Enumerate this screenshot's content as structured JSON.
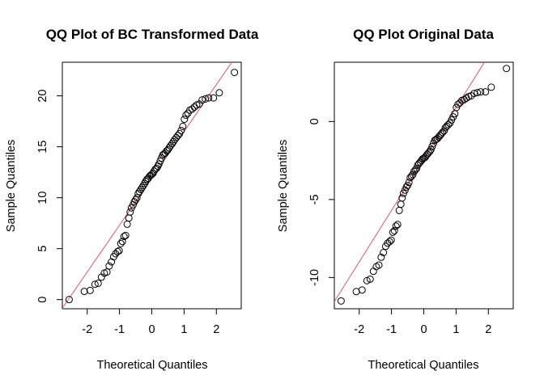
{
  "chart_data": [
    {
      "type": "scatter",
      "title": "QQ Plot of BC Transformed Data",
      "xlabel": "Theoretical Quantiles",
      "ylabel": "Sample Quantiles",
      "xlim": [
        -2.77,
        2.77
      ],
      "ylim": [
        -0.9,
        23.3
      ],
      "xticks": [
        -2,
        -1,
        0,
        1,
        2
      ],
      "yticks": [
        0,
        5,
        10,
        15,
        20
      ],
      "reference_line": {
        "intercept": 11.9,
        "slope": 4.6,
        "color": "#DF536B"
      },
      "point_color": "#000000",
      "points": [
        {
          "x": -2.56,
          "y": 0.0
        },
        {
          "x": -2.09,
          "y": 0.8
        },
        {
          "x": -1.91,
          "y": 0.9
        },
        {
          "x": -1.76,
          "y": 1.5
        },
        {
          "x": -1.66,
          "y": 1.6
        },
        {
          "x": -1.56,
          "y": 2.2
        },
        {
          "x": -1.47,
          "y": 2.6
        },
        {
          "x": -1.39,
          "y": 2.7
        },
        {
          "x": -1.32,
          "y": 3.3
        },
        {
          "x": -1.25,
          "y": 3.7
        },
        {
          "x": -1.18,
          "y": 4.2
        },
        {
          "x": -1.12,
          "y": 4.5
        },
        {
          "x": -1.06,
          "y": 4.7
        },
        {
          "x": -1.01,
          "y": 4.8
        },
        {
          "x": -0.96,
          "y": 5.5
        },
        {
          "x": -0.91,
          "y": 5.7
        },
        {
          "x": -0.86,
          "y": 6.2
        },
        {
          "x": -0.81,
          "y": 6.3
        },
        {
          "x": -0.76,
          "y": 7.4
        },
        {
          "x": -0.71,
          "y": 8.0
        },
        {
          "x": -0.67,
          "y": 8.6
        },
        {
          "x": -0.63,
          "y": 9.0
        },
        {
          "x": -0.58,
          "y": 9.3
        },
        {
          "x": -0.54,
          "y": 9.6
        },
        {
          "x": -0.5,
          "y": 9.8
        },
        {
          "x": -0.46,
          "y": 10.0
        },
        {
          "x": -0.42,
          "y": 10.4
        },
        {
          "x": -0.38,
          "y": 10.6
        },
        {
          "x": -0.34,
          "y": 10.8
        },
        {
          "x": -0.3,
          "y": 11.0
        },
        {
          "x": -0.26,
          "y": 11.2
        },
        {
          "x": -0.22,
          "y": 11.4
        },
        {
          "x": -0.19,
          "y": 11.6
        },
        {
          "x": -0.15,
          "y": 11.8
        },
        {
          "x": -0.11,
          "y": 11.9
        },
        {
          "x": -0.07,
          "y": 12.1
        },
        {
          "x": -0.04,
          "y": 12.2
        },
        {
          "x": 0.0,
          "y": 12.3
        },
        {
          "x": 0.04,
          "y": 12.4
        },
        {
          "x": 0.07,
          "y": 12.6
        },
        {
          "x": 0.11,
          "y": 12.8
        },
        {
          "x": 0.15,
          "y": 12.9
        },
        {
          "x": 0.19,
          "y": 13.1
        },
        {
          "x": 0.22,
          "y": 13.3
        },
        {
          "x": 0.26,
          "y": 13.6
        },
        {
          "x": 0.3,
          "y": 13.9
        },
        {
          "x": 0.34,
          "y": 14.2
        },
        {
          "x": 0.38,
          "y": 14.3
        },
        {
          "x": 0.42,
          "y": 14.4
        },
        {
          "x": 0.46,
          "y": 14.6
        },
        {
          "x": 0.5,
          "y": 14.7
        },
        {
          "x": 0.54,
          "y": 14.9
        },
        {
          "x": 0.58,
          "y": 15.1
        },
        {
          "x": 0.63,
          "y": 15.3
        },
        {
          "x": 0.67,
          "y": 15.5
        },
        {
          "x": 0.71,
          "y": 15.7
        },
        {
          "x": 0.76,
          "y": 15.9
        },
        {
          "x": 0.81,
          "y": 16.1
        },
        {
          "x": 0.86,
          "y": 16.3
        },
        {
          "x": 0.91,
          "y": 16.6
        },
        {
          "x": 0.96,
          "y": 17.0
        },
        {
          "x": 1.01,
          "y": 17.7
        },
        {
          "x": 1.06,
          "y": 18.1
        },
        {
          "x": 1.12,
          "y": 18.3
        },
        {
          "x": 1.18,
          "y": 18.6
        },
        {
          "x": 1.25,
          "y": 18.7
        },
        {
          "x": 1.32,
          "y": 18.9
        },
        {
          "x": 1.39,
          "y": 19.1
        },
        {
          "x": 1.47,
          "y": 19.2
        },
        {
          "x": 1.56,
          "y": 19.6
        },
        {
          "x": 1.66,
          "y": 19.7
        },
        {
          "x": 1.76,
          "y": 19.8
        },
        {
          "x": 1.91,
          "y": 19.8
        },
        {
          "x": 2.09,
          "y": 20.3
        },
        {
          "x": 2.56,
          "y": 22.3
        }
      ]
    },
    {
      "type": "scatter",
      "title": "QQ Plot Original Data",
      "xlabel": "Theoretical Quantiles",
      "ylabel": "Sample Quantiles",
      "xlim": [
        -2.77,
        2.77
      ],
      "ylim": [
        -12.0,
        3.8
      ],
      "xticks": [
        -2,
        -1,
        0,
        1,
        2
      ],
      "yticks": [
        -10,
        -5,
        0
      ],
      "reference_line": {
        "intercept": -2.4,
        "slope": 3.3,
        "color": "#DF536B"
      },
      "point_color": "#000000",
      "points": [
        {
          "x": -2.56,
          "y": -11.5
        },
        {
          "x": -2.09,
          "y": -10.9
        },
        {
          "x": -1.91,
          "y": -10.8
        },
        {
          "x": -1.76,
          "y": -10.2
        },
        {
          "x": -1.66,
          "y": -10.1
        },
        {
          "x": -1.56,
          "y": -9.6
        },
        {
          "x": -1.47,
          "y": -9.3
        },
        {
          "x": -1.39,
          "y": -9.2
        },
        {
          "x": -1.32,
          "y": -8.7
        },
        {
          "x": -1.25,
          "y": -8.4
        },
        {
          "x": -1.18,
          "y": -8.0
        },
        {
          "x": -1.12,
          "y": -7.8
        },
        {
          "x": -1.06,
          "y": -7.7
        },
        {
          "x": -1.01,
          "y": -7.6
        },
        {
          "x": -0.96,
          "y": -7.1
        },
        {
          "x": -0.91,
          "y": -7.0
        },
        {
          "x": -0.86,
          "y": -6.7
        },
        {
          "x": -0.81,
          "y": -6.6
        },
        {
          "x": -0.76,
          "y": -5.7
        },
        {
          "x": -0.71,
          "y": -5.3
        },
        {
          "x": -0.67,
          "y": -4.9
        },
        {
          "x": -0.63,
          "y": -4.6
        },
        {
          "x": -0.58,
          "y": -4.4
        },
        {
          "x": -0.54,
          "y": -4.2
        },
        {
          "x": -0.5,
          "y": -4.1
        },
        {
          "x": -0.46,
          "y": -3.9
        },
        {
          "x": -0.42,
          "y": -3.6
        },
        {
          "x": -0.38,
          "y": -3.5
        },
        {
          "x": -0.34,
          "y": -3.4
        },
        {
          "x": -0.3,
          "y": -3.2
        },
        {
          "x": -0.26,
          "y": -3.1
        },
        {
          "x": -0.22,
          "y": -3.0
        },
        {
          "x": -0.19,
          "y": -2.8
        },
        {
          "x": -0.15,
          "y": -2.7
        },
        {
          "x": -0.11,
          "y": -2.6
        },
        {
          "x": -0.07,
          "y": -2.5
        },
        {
          "x": -0.04,
          "y": -2.4
        },
        {
          "x": 0.0,
          "y": -2.35
        },
        {
          "x": 0.04,
          "y": -2.3
        },
        {
          "x": 0.07,
          "y": -2.2
        },
        {
          "x": 0.11,
          "y": -2.1
        },
        {
          "x": 0.15,
          "y": -2.0
        },
        {
          "x": 0.19,
          "y": -1.9
        },
        {
          "x": 0.22,
          "y": -1.8
        },
        {
          "x": 0.26,
          "y": -1.6
        },
        {
          "x": 0.3,
          "y": -1.4
        },
        {
          "x": 0.34,
          "y": -1.2
        },
        {
          "x": 0.38,
          "y": -1.15
        },
        {
          "x": 0.42,
          "y": -1.1
        },
        {
          "x": 0.46,
          "y": -1.0
        },
        {
          "x": 0.5,
          "y": -0.9
        },
        {
          "x": 0.54,
          "y": -0.8
        },
        {
          "x": 0.58,
          "y": -0.7
        },
        {
          "x": 0.63,
          "y": -0.6
        },
        {
          "x": 0.67,
          "y": -0.4
        },
        {
          "x": 0.71,
          "y": -0.3
        },
        {
          "x": 0.76,
          "y": -0.2
        },
        {
          "x": 0.81,
          "y": -0.1
        },
        {
          "x": 0.86,
          "y": 0.1
        },
        {
          "x": 0.91,
          "y": 0.3
        },
        {
          "x": 0.96,
          "y": 0.5
        },
        {
          "x": 1.01,
          "y": 0.9
        },
        {
          "x": 1.06,
          "y": 1.1
        },
        {
          "x": 1.12,
          "y": 1.2
        },
        {
          "x": 1.18,
          "y": 1.35
        },
        {
          "x": 1.25,
          "y": 1.4
        },
        {
          "x": 1.32,
          "y": 1.5
        },
        {
          "x": 1.39,
          "y": 1.6
        },
        {
          "x": 1.47,
          "y": 1.65
        },
        {
          "x": 1.56,
          "y": 1.8
        },
        {
          "x": 1.66,
          "y": 1.85
        },
        {
          "x": 1.76,
          "y": 1.9
        },
        {
          "x": 1.91,
          "y": 1.9
        },
        {
          "x": 2.09,
          "y": 2.2
        },
        {
          "x": 2.56,
          "y": 3.4
        }
      ]
    }
  ]
}
